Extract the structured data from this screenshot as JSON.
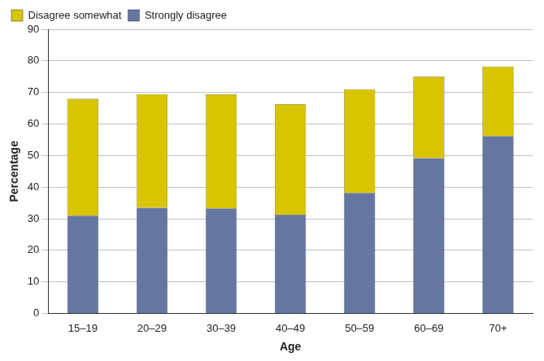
{
  "chart_data": {
    "type": "bar",
    "x_label": "Age",
    "y_label": "Percentage",
    "categories": [
      "15–19",
      "20–29",
      "30–39",
      "40–49",
      "50–59",
      "60–69",
      "70+"
    ],
    "series": [
      {
        "name": "Strongly disagree",
        "color": "#6577a0",
        "values": [
          31,
          33.5,
          33.3,
          31.3,
          38.2,
          49.2,
          56.2
        ]
      },
      {
        "name": "Disagree somewhat",
        "color": "#d9c400",
        "values": [
          37,
          36,
          36.1,
          35,
          32.8,
          25.8,
          22
        ]
      }
    ],
    "stacked": true,
    "ylim": [
      0,
      90
    ],
    "yticks": [
      0,
      10,
      20,
      30,
      40,
      50,
      60,
      70,
      80,
      90
    ],
    "grid": true,
    "legend": "upper left"
  }
}
